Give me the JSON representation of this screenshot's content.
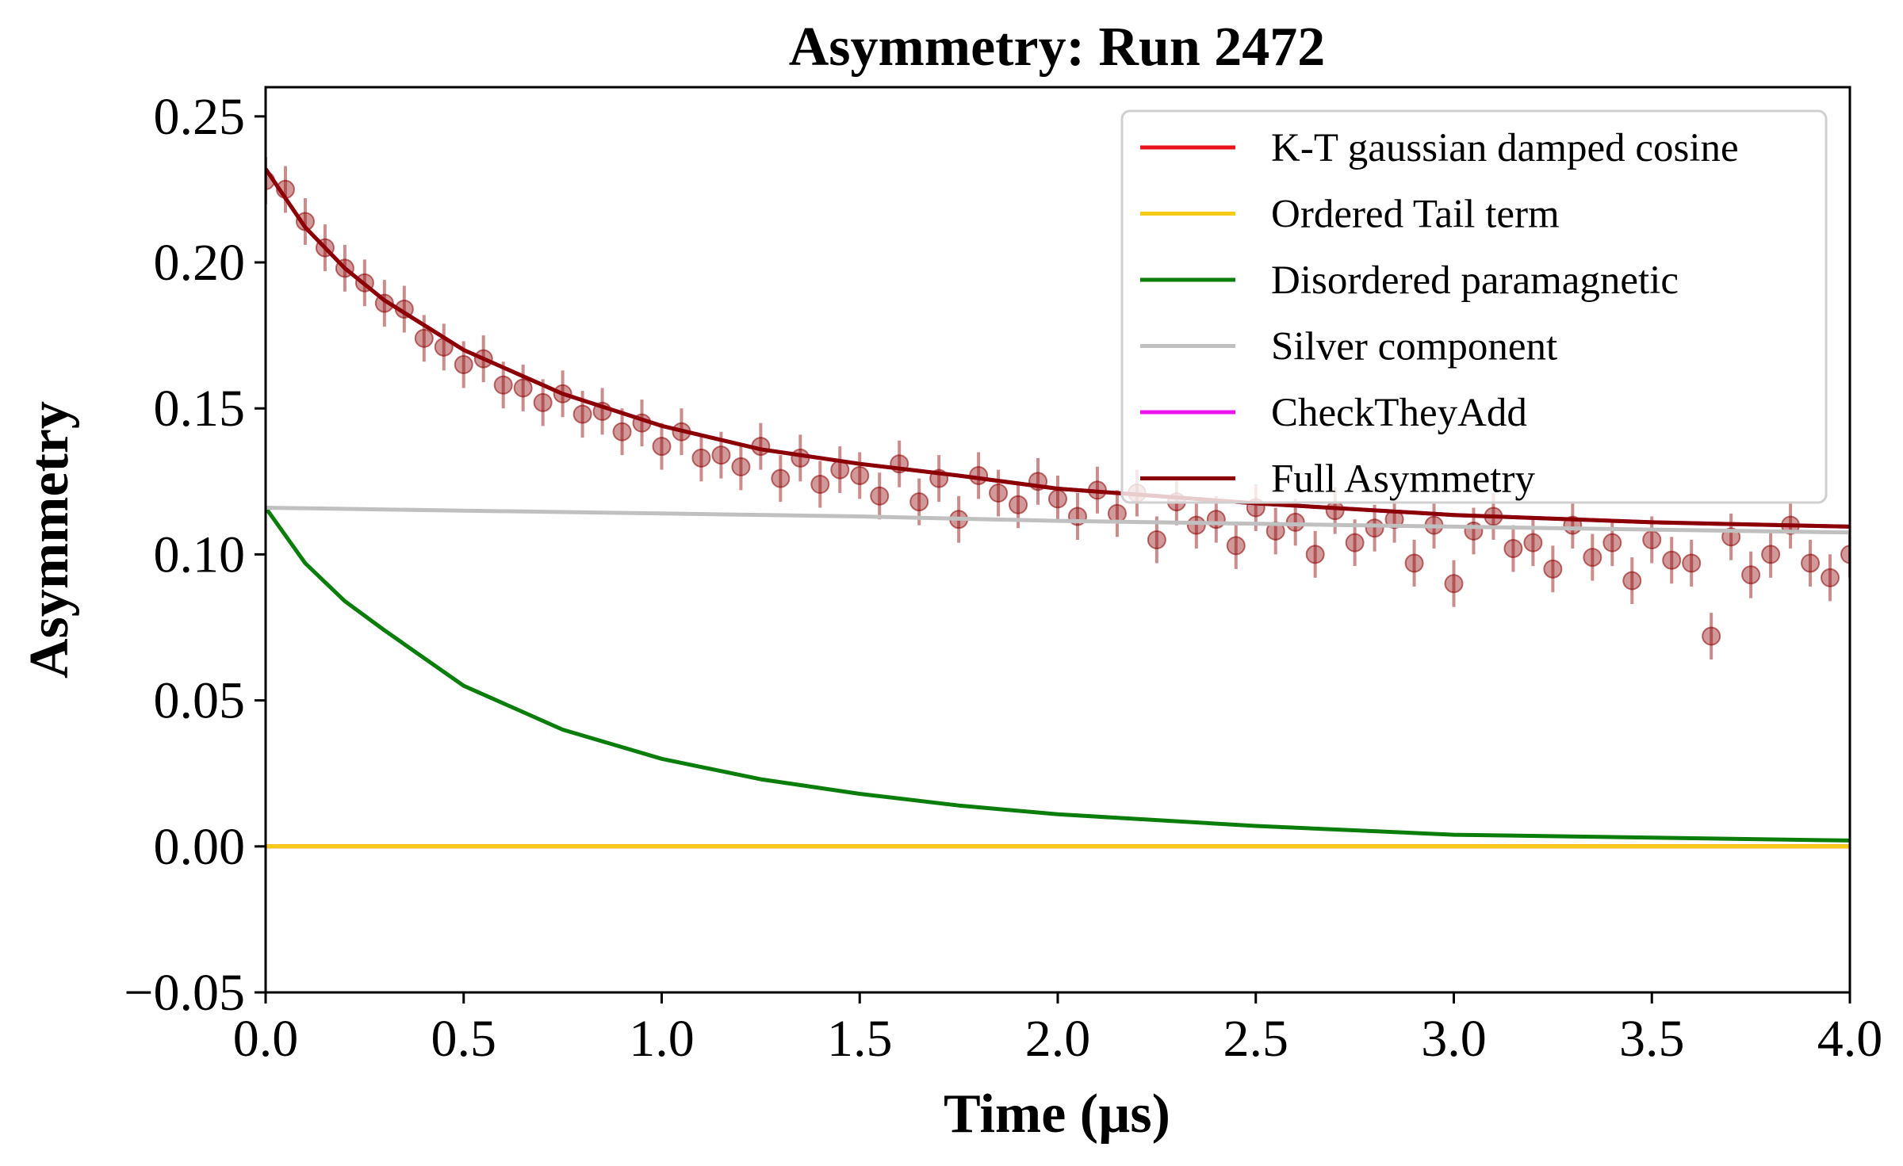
{
  "chart_data": {
    "type": "scatter",
    "title": "Asymmetry: Run 2472",
    "xlabel": "Time (µs)",
    "ylabel": "Asymmetry",
    "xlim": [
      0.0,
      4.0
    ],
    "ylim": [
      -0.05,
      0.26
    ],
    "x_ticks": [
      0.0,
      0.5,
      1.0,
      1.5,
      2.0,
      2.5,
      3.0,
      3.5,
      4.0
    ],
    "x_tick_labels": [
      "0.0",
      "0.5",
      "1.0",
      "1.5",
      "2.0",
      "2.5",
      "3.0",
      "3.5",
      "4.0"
    ],
    "y_ticks": [
      -0.05,
      0.0,
      0.05,
      0.1,
      0.15,
      0.2,
      0.25
    ],
    "y_tick_labels": [
      "−0.05",
      "0.00",
      "0.05",
      "0.10",
      "0.15",
      "0.20",
      "0.25"
    ],
    "grid": false,
    "legend_position": "top-right",
    "series": [
      {
        "name": "K-T gaussian damped cosine",
        "kind": "line",
        "color": "#e8141a",
        "x": [
          0.0,
          0.5,
          1.0,
          1.5,
          2.0,
          2.5,
          3.0,
          3.5,
          4.0
        ],
        "y": [
          0.0,
          0.0,
          0.0,
          0.0,
          0.0,
          0.0,
          0.0,
          0.0,
          0.0
        ]
      },
      {
        "name": "Ordered Tail term",
        "kind": "line",
        "color": "#f5cb16",
        "x": [
          0.0,
          0.5,
          1.0,
          1.5,
          2.0,
          2.5,
          3.0,
          3.5,
          4.0
        ],
        "y": [
          0.0,
          0.0,
          0.0,
          0.0,
          0.0,
          0.0,
          0.0,
          0.0,
          0.0
        ]
      },
      {
        "name": "Disordered paramagnetic",
        "kind": "line",
        "color": "#0a7d0a",
        "x": [
          0.0,
          0.1,
          0.2,
          0.3,
          0.5,
          0.75,
          1.0,
          1.25,
          1.5,
          1.75,
          2.0,
          2.5,
          3.0,
          3.5,
          4.0
        ],
        "y": [
          0.116,
          0.097,
          0.084,
          0.074,
          0.055,
          0.04,
          0.03,
          0.023,
          0.018,
          0.014,
          0.011,
          0.007,
          0.004,
          0.003,
          0.002
        ]
      },
      {
        "name": "Silver component",
        "kind": "line",
        "color": "#c0c0c0",
        "x": [
          0.0,
          0.5,
          1.0,
          1.5,
          2.0,
          2.5,
          3.0,
          3.5,
          4.0
        ],
        "y": [
          0.116,
          0.115,
          0.114,
          0.113,
          0.1115,
          0.1105,
          0.1095,
          0.1085,
          0.1075
        ]
      },
      {
        "name": "CheckTheyAdd",
        "kind": "line",
        "color": "#ee14ee",
        "x": [
          0.0,
          0.1,
          0.2,
          0.3,
          0.5,
          0.75,
          1.0,
          1.25,
          1.5,
          1.75,
          2.0,
          2.5,
          3.0,
          3.5,
          4.0
        ],
        "y": [
          0.232,
          0.212,
          0.198,
          0.187,
          0.17,
          0.155,
          0.144,
          0.136,
          0.131,
          0.127,
          0.1225,
          0.1175,
          0.1135,
          0.111,
          0.1095
        ]
      },
      {
        "name": "Full Asymmetry",
        "kind": "line",
        "color": "#8b0000",
        "x": [
          0.0,
          0.1,
          0.2,
          0.3,
          0.5,
          0.75,
          1.0,
          1.25,
          1.5,
          1.75,
          2.0,
          2.5,
          3.0,
          3.5,
          4.0
        ],
        "y": [
          0.232,
          0.212,
          0.198,
          0.187,
          0.17,
          0.155,
          0.144,
          0.136,
          0.131,
          0.127,
          0.1225,
          0.1175,
          0.1135,
          0.111,
          0.1095
        ]
      },
      {
        "name": "",
        "kind": "errorbar",
        "color": "#8b0000",
        "x": [
          0.0,
          0.05,
          0.1,
          0.15,
          0.2,
          0.25,
          0.3,
          0.35,
          0.4,
          0.45,
          0.5,
          0.55,
          0.6,
          0.65,
          0.7,
          0.75,
          0.8,
          0.85,
          0.9,
          0.95,
          1.0,
          1.05,
          1.1,
          1.15,
          1.2,
          1.25,
          1.3,
          1.35,
          1.4,
          1.45,
          1.5,
          1.55,
          1.6,
          1.65,
          1.7,
          1.75,
          1.8,
          1.85,
          1.9,
          1.95,
          2.0,
          2.05,
          2.1,
          2.15,
          2.2,
          2.25,
          2.3,
          2.35,
          2.4,
          2.45,
          2.5,
          2.55,
          2.6,
          2.65,
          2.7,
          2.75,
          2.8,
          2.85,
          2.9,
          2.95,
          3.0,
          3.05,
          3.1,
          3.15,
          3.2,
          3.25,
          3.3,
          3.35,
          3.4,
          3.45,
          3.5,
          3.55,
          3.6,
          3.65,
          3.7,
          3.75,
          3.8,
          3.85,
          3.9,
          3.95,
          4.0
        ],
        "y": [
          0.228,
          0.225,
          0.214,
          0.205,
          0.198,
          0.193,
          0.186,
          0.184,
          0.174,
          0.171,
          0.165,
          0.167,
          0.158,
          0.157,
          0.152,
          0.155,
          0.148,
          0.149,
          0.142,
          0.145,
          0.137,
          0.142,
          0.133,
          0.134,
          0.13,
          0.137,
          0.126,
          0.133,
          0.124,
          0.129,
          0.127,
          0.12,
          0.131,
          0.118,
          0.126,
          0.112,
          0.127,
          0.121,
          0.117,
          0.125,
          0.119,
          0.113,
          0.122,
          0.114,
          0.121,
          0.105,
          0.118,
          0.11,
          0.112,
          0.103,
          0.116,
          0.108,
          0.111,
          0.1,
          0.115,
          0.104,
          0.109,
          0.112,
          0.097,
          0.11,
          0.09,
          0.108,
          0.113,
          0.102,
          0.104,
          0.095,
          0.11,
          0.099,
          0.104,
          0.091,
          0.105,
          0.098,
          0.097,
          0.072,
          0.106,
          0.093,
          0.1,
          0.11,
          0.097,
          0.092,
          0.1
        ],
        "yerr": 0.008
      }
    ]
  }
}
